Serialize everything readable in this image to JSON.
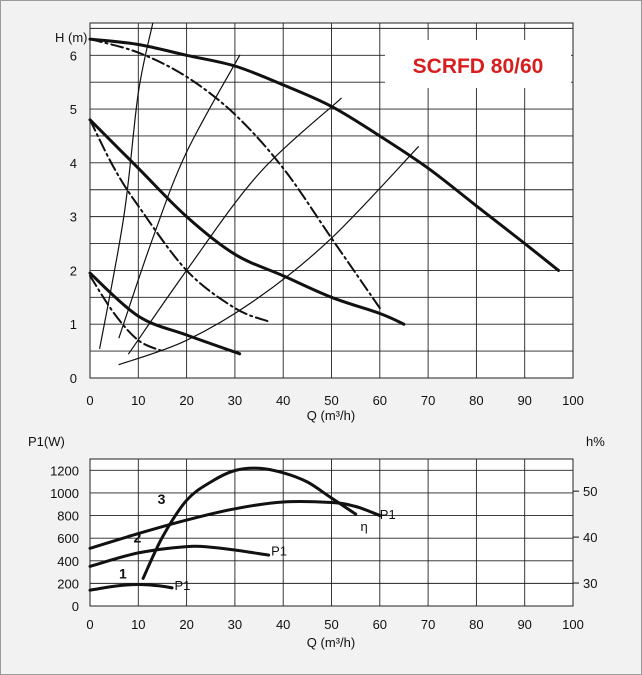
{
  "chart_data": [
    {
      "type": "line",
      "title": "SCRFD 80/60",
      "title_color": "#d81e1e",
      "xlabel": "Q (m³/h)",
      "ylabel": "H (m)",
      "xlim": [
        0,
        100
      ],
      "ylim": [
        0,
        6.6
      ],
      "x_ticks": [
        "0",
        "10",
        "20",
        "30",
        "40",
        "50",
        "60",
        "70",
        "80",
        "90",
        "100"
      ],
      "y_ticks": [
        "0",
        "1",
        "2",
        "3",
        "4",
        "5",
        "6"
      ],
      "grid": true,
      "series": [
        {
          "style": "solid-thick",
          "points": [
            [
              0,
              6.3
            ],
            [
              10,
              6.2
            ],
            [
              20,
              6.0
            ],
            [
              30,
              5.8
            ],
            [
              40,
              5.45
            ],
            [
              50,
              5.05
            ],
            [
              60,
              4.5
            ],
            [
              70,
              3.9
            ],
            [
              80,
              3.2
            ],
            [
              90,
              2.5
            ],
            [
              97,
              2.0
            ]
          ]
        },
        {
          "style": "solid-thick",
          "points": [
            [
              0,
              4.8
            ],
            [
              10,
              3.9
            ],
            [
              20,
              3.0
            ],
            [
              30,
              2.3
            ],
            [
              40,
              1.9
            ],
            [
              50,
              1.5
            ],
            [
              60,
              1.2
            ],
            [
              65,
              1.0
            ]
          ]
        },
        {
          "style": "solid-thick",
          "points": [
            [
              0,
              1.95
            ],
            [
              10,
              1.15
            ],
            [
              20,
              0.8
            ],
            [
              31,
              0.45
            ]
          ]
        },
        {
          "style": "dash-dot",
          "points": [
            [
              0,
              6.3
            ],
            [
              10,
              6.05
            ],
            [
              20,
              5.6
            ],
            [
              30,
              4.9
            ],
            [
              40,
              3.9
            ],
            [
              50,
              2.6
            ],
            [
              60,
              1.3
            ]
          ]
        },
        {
          "style": "dash-dot",
          "points": [
            [
              0,
              4.8
            ],
            [
              5,
              3.9
            ],
            [
              10,
              3.2
            ],
            [
              20,
              2.0
            ],
            [
              30,
              1.3
            ],
            [
              37,
              1.05
            ]
          ]
        },
        {
          "style": "dash-dot",
          "points": [
            [
              0,
              1.9
            ],
            [
              5,
              1.2
            ],
            [
              10,
              0.7
            ],
            [
              15,
              0.5
            ]
          ]
        },
        {
          "style": "thin",
          "points": [
            [
              2,
              0.55
            ],
            [
              7,
              3.0
            ],
            [
              10,
              5.3
            ],
            [
              13,
              6.6
            ]
          ]
        },
        {
          "style": "thin",
          "points": [
            [
              6,
              0.75
            ],
            [
              13,
              2.6
            ],
            [
              20,
              4.2
            ],
            [
              31,
              6.0
            ]
          ]
        },
        {
          "style": "thin",
          "points": [
            [
              8,
              0.45
            ],
            [
              20,
              2.0
            ],
            [
              35,
              3.8
            ],
            [
              52,
              5.2
            ]
          ]
        },
        {
          "style": "thin",
          "points": [
            [
              6,
              0.25
            ],
            [
              20,
              0.7
            ],
            [
              35,
              1.5
            ],
            [
              50,
              2.6
            ],
            [
              68,
              4.3
            ]
          ]
        }
      ]
    },
    {
      "type": "line",
      "xlabel": "Q (m³/h)",
      "ylabel": "P1(W)",
      "y2label": "h%",
      "xlim": [
        0,
        100
      ],
      "ylim": [
        0,
        1300
      ],
      "y2lim": [
        25,
        57
      ],
      "x_ticks": [
        "0",
        "10",
        "20",
        "30",
        "40",
        "50",
        "60",
        "70",
        "80",
        "90",
        "100"
      ],
      "y_ticks": [
        "0",
        "200",
        "400",
        "600",
        "800",
        "1000",
        "1200"
      ],
      "y2_ticks": [
        "30",
        "40",
        "50"
      ],
      "grid": true,
      "curve_labels": [
        {
          "text": "1",
          "x": 6,
          "y": 245,
          "bold": true
        },
        {
          "text": "2",
          "x": 9,
          "y": 560,
          "bold": true
        },
        {
          "text": "3",
          "x": 14,
          "y": 900,
          "bold": true
        },
        {
          "text": "P1",
          "x": 17.5,
          "y": 140,
          "bold": false
        },
        {
          "text": "P1",
          "x": 37.5,
          "y": 445,
          "bold": false
        },
        {
          "text": "P1",
          "x": 60,
          "y": 770,
          "bold": false
        },
        {
          "text": "η",
          "x": 56,
          "y": 665,
          "bold": false
        }
      ],
      "series": [
        {
          "name": "P1",
          "axis": "left",
          "style": "solid-thick",
          "points": [
            [
              0,
              140
            ],
            [
              5,
              175
            ],
            [
              10,
              190
            ],
            [
              15,
              175
            ],
            [
              17,
              160
            ]
          ]
        },
        {
          "name": "P1",
          "axis": "left",
          "style": "solid-thick",
          "points": [
            [
              0,
              350
            ],
            [
              10,
              470
            ],
            [
              20,
              525
            ],
            [
              25,
              520
            ],
            [
              30,
              495
            ],
            [
              37,
              450
            ]
          ]
        },
        {
          "name": "P1",
          "axis": "left",
          "style": "solid-thick",
          "points": [
            [
              0,
              510
            ],
            [
              10,
              640
            ],
            [
              20,
              760
            ],
            [
              30,
              860
            ],
            [
              40,
              920
            ],
            [
              50,
              915
            ],
            [
              55,
              880
            ],
            [
              60,
              800
            ]
          ]
        },
        {
          "name": "η",
          "axis": "right",
          "style": "solid-thick",
          "points": [
            [
              11,
              31
            ],
            [
              15,
              40
            ],
            [
              20,
              48
            ],
            [
              25,
              52
            ],
            [
              30,
              54.5
            ],
            [
              35,
              55
            ],
            [
              40,
              54
            ],
            [
              45,
              52
            ],
            [
              50,
              48.5
            ],
            [
              55,
              45
            ]
          ]
        }
      ]
    }
  ]
}
